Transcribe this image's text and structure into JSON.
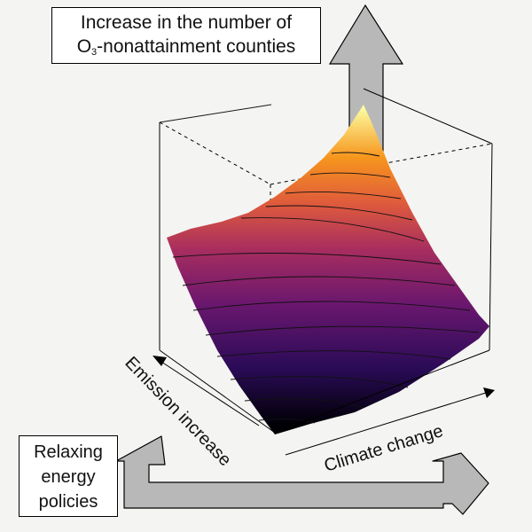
{
  "top_label": {
    "line1": "Increase in the number of",
    "line2_prefix": "O",
    "line2_sub": "3",
    "line2_suffix": "-nonattainment counties"
  },
  "bottom_label": {
    "lines": [
      "Relaxing",
      "energy",
      "policies"
    ]
  },
  "axes": {
    "emission": "Emission increase",
    "climate": "Climate change"
  },
  "colors": {
    "background": "#f4f4f2",
    "arrow_fill": "#b8b8b8",
    "surface_low": "#000004",
    "surface_mid": "#b73779",
    "surface_high": "#fcffa4"
  }
}
